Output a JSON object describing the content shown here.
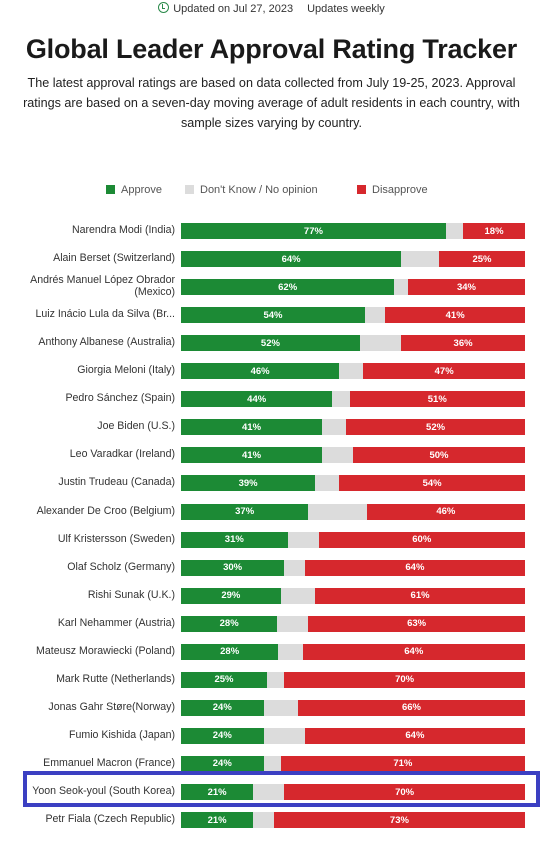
{
  "header": {
    "updated": "Updated on Jul 27, 2023",
    "frequency": "Updates weekly",
    "title": "Global Leader Approval Rating Tracker",
    "subtitle": "The latest approval ratings are based on data collected from July 19-25, 2023. Approval ratings are based on a seven-day moving average of adult residents in each country, with sample sizes varying by country."
  },
  "colors": {
    "approve": "#1c8a35",
    "unsure": "#dcdcdc",
    "disapprove": "#d6282d",
    "highlight": "#3b3fc2"
  },
  "chart_data": {
    "type": "bar",
    "orientation": "horizontal",
    "stacked": true,
    "title": "Global Leader Approval Rating Tracker",
    "legend_position": "top",
    "xlim": [
      0,
      100
    ],
    "categories": [
      "Narendra Modi (India)",
      "Alain Berset (Switzerland)",
      "Andrés Manuel López Obrador (Mexico)",
      "Luiz Inácio Lula da Silva (Br...",
      "Anthony Albanese (Australia)",
      "Giorgia Meloni (Italy)",
      "Pedro Sánchez (Spain)",
      "Joe Biden (U.S.)",
      "Leo Varadkar (Ireland)",
      "Justin Trudeau (Canada)",
      "Alexander De Croo (Belgium)",
      "Ulf Kristersson (Sweden)",
      "Olaf Scholz (Germany)",
      "Rishi Sunak (U.K.)",
      "Karl Nehammer (Austria)",
      "Mateusz Morawiecki (Poland)",
      "Mark Rutte (Netherlands)",
      "Jonas Gahr Støre(Norway)",
      "Fumio Kishida (Japan)",
      "Emmanuel Macron (France)",
      "Yoon Seok-youl (South Korea)",
      "Petr Fiala (Czech Republic)"
    ],
    "series": [
      {
        "name": "Approve",
        "values": [
          77,
          64,
          62,
          54,
          52,
          46,
          44,
          41,
          41,
          39,
          37,
          31,
          30,
          29,
          28,
          28,
          25,
          24,
          24,
          24,
          21,
          21
        ]
      },
      {
        "name": "Don't Know / No opinion",
        "values": [
          5,
          11,
          4,
          6,
          12,
          7,
          5,
          7,
          9,
          7,
          17,
          9,
          6,
          10,
          9,
          7,
          5,
          10,
          12,
          5,
          9,
          6
        ]
      },
      {
        "name": "Disapprove",
        "values": [
          18,
          25,
          34,
          41,
          36,
          47,
          51,
          52,
          50,
          54,
          46,
          60,
          64,
          61,
          63,
          64,
          70,
          66,
          64,
          71,
          70,
          73
        ]
      }
    ],
    "value_labels": {
      "approve": [
        "77%",
        "64%",
        "62%",
        "54%",
        "52%",
        "46%",
        "44%",
        "41%",
        "41%",
        "39%",
        "37%",
        "31%",
        "30%",
        "29%",
        "28%",
        "28%",
        "25%",
        "24%",
        "24%",
        "24%",
        "21%",
        "21%"
      ],
      "disapprove": [
        "18%",
        "25%",
        "34%",
        "41%",
        "36%",
        "47%",
        "51%",
        "52%",
        "50%",
        "54%",
        "46%",
        "60%",
        "64%",
        "61%",
        "63%",
        "64%",
        "70%",
        "66%",
        "64%",
        "71%",
        "70%",
        "73%"
      ]
    },
    "highlighted_category": "Yoon Seok-youl (South Korea)"
  }
}
